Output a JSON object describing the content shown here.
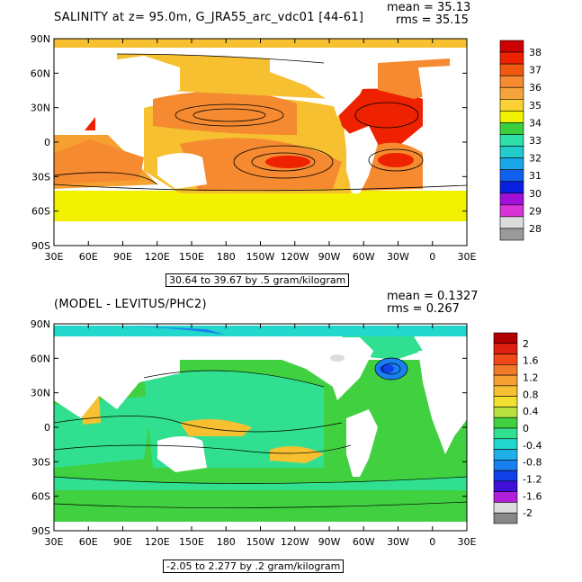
{
  "panels": [
    {
      "title": "SALINITY at z=  95.0m, G_JRA55_arc_vdc01 [44-61]",
      "mean": "mean = 35.13",
      "rms": "rms = 35.15",
      "range": "30.64 to 39.67 by .5 gram/kilogram",
      "colorbar": {
        "labels": [
          "38",
          "37",
          "36",
          "35",
          "34",
          "33",
          "32",
          "31",
          "30",
          "29",
          "28"
        ],
        "colors": [
          "#cc0000",
          "#ee2200",
          "#f05a10",
          "#f58a30",
          "#f6a43a",
          "#fad233",
          "#f2f200",
          "#3ccf3c",
          "#2ee0a8",
          "#22cccc",
          "#18a8e8",
          "#1060f0",
          "#0a20e0",
          "#a010d8",
          "#d834d8",
          "#dcdcdc",
          "#9a9a9a"
        ]
      },
      "y_ticks": [
        "90N",
        "60N",
        "30N",
        "0",
        "30S",
        "60S",
        "90S"
      ],
      "x_ticks": [
        "30E",
        "60E",
        "90E",
        "120E",
        "150E",
        "180",
        "150W",
        "120W",
        "90W",
        "60W",
        "30W",
        "0",
        "30E"
      ]
    },
    {
      "title": "(MODEL - LEVITUS/PHC2)",
      "mean": "mean = 0.1327",
      "rms": "rms = 0.267",
      "range": "-2.05 to 2.277 by .2 gram/kilogram",
      "colorbar": {
        "labels": [
          "2",
          "1.6",
          "1.2",
          "0.8",
          "0.4",
          "0",
          "-0.4",
          "-0.8",
          "-1.2",
          "-1.6",
          "-2"
        ],
        "colors": [
          "#b00000",
          "#e02010",
          "#f04818",
          "#f07a28",
          "#f5a030",
          "#f6c030",
          "#f2e030",
          "#b8e040",
          "#40d040",
          "#30e090",
          "#22d8cc",
          "#20b0e8",
          "#1880f0",
          "#1040e8",
          "#4010d8",
          "#b020d8",
          "#dcdcdc",
          "#888888"
        ]
      },
      "y_ticks": [
        "90N",
        "60N",
        "30N",
        "0",
        "30S",
        "60S",
        "90S"
      ],
      "x_ticks": [
        "30E",
        "60E",
        "90E",
        "120E",
        "150E",
        "180",
        "150W",
        "120W",
        "90W",
        "60W",
        "30W",
        "0",
        "30E"
      ]
    }
  ]
}
